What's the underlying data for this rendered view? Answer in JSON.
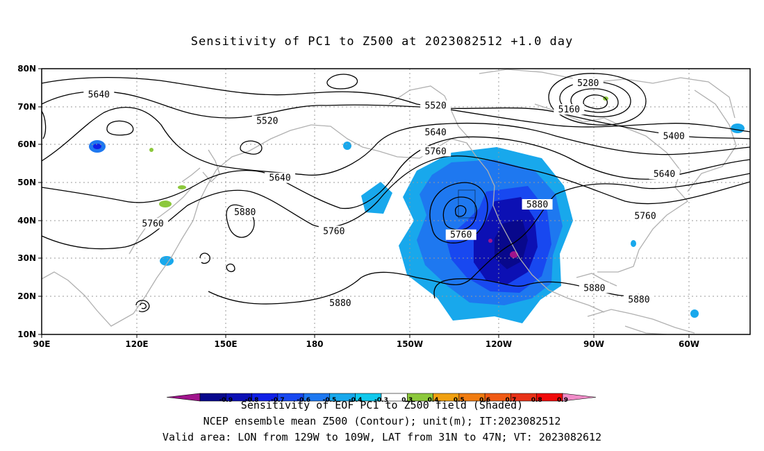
{
  "title": "Sensitivity of PC1 to Z500 at 2023082512 +1.0 day",
  "lat_labels": [
    "80N",
    "70N",
    "60N",
    "50N",
    "40N",
    "30N",
    "20N",
    "10N"
  ],
  "lon_labels": [
    "90E",
    "120E",
    "150E",
    "180",
    "150W",
    "120W",
    "90W",
    "60W"
  ],
  "contour_labels": [
    {
      "text": "5640",
      "lon": 108,
      "lat": 73
    },
    {
      "text": "5520",
      "lon": 161,
      "lat": 66
    },
    {
      "text": "5640",
      "lon": 165,
      "lat": 51
    },
    {
      "text": "5880",
      "lon": 154,
      "lat": 42
    },
    {
      "text": "5760",
      "lon": 125,
      "lat": 39
    },
    {
      "text": "5760",
      "lon": 182,
      "lat": 37
    },
    {
      "text": "5880",
      "lon": 184,
      "lat": 18
    },
    {
      "text": "5520",
      "lon": -146,
      "lat": 70
    },
    {
      "text": "5640",
      "lon": -146,
      "lat": 63
    },
    {
      "text": "5760",
      "lon": -146,
      "lat": 58
    },
    {
      "text": "5280",
      "lon": -98,
      "lat": 76
    },
    {
      "text": "5160",
      "lon": -104,
      "lat": 69
    },
    {
      "text": "5400",
      "lon": -71,
      "lat": 62
    },
    {
      "text": "5640",
      "lon": -74,
      "lat": 52
    },
    {
      "text": "5760",
      "lon": -80,
      "lat": 41
    },
    {
      "text": "5880",
      "lon": -114,
      "lat": 44
    },
    {
      "text": "5760",
      "lon": -138,
      "lat": 36
    },
    {
      "text": "5880",
      "lon": -96,
      "lat": 22
    },
    {
      "text": "5880",
      "lon": -82,
      "lat": 19
    }
  ],
  "colorbar": {
    "labels": [
      "-0.9",
      "-0.8",
      "-0.7",
      "-0.6",
      "-0.5",
      "-0.4",
      "-0.3",
      "0.3",
      "0.4",
      "0.5",
      "0.6",
      "0.7",
      "0.8",
      "0.9"
    ],
    "colors": [
      "#a0148c",
      "#08088c",
      "#0c10b4",
      "#1020e6",
      "#1848f0",
      "#1e78f0",
      "#18a8ec",
      "#10c8ec",
      "#ffffff",
      "#8cc83c",
      "#f0a010",
      "#f07c10",
      "#f05a14",
      "#e83218",
      "#f00a0a",
      "#f08cc8"
    ]
  },
  "captions": [
    "Sensitivity of EOF PC1 to Z500 field (Shaded)",
    "NCEP ensemble mean Z500 (Contour); unit(m); IT:2023082512",
    "Valid area: LON from 129W to 109W, LAT from 31N to 47N; VT: 2023082612"
  ]
}
